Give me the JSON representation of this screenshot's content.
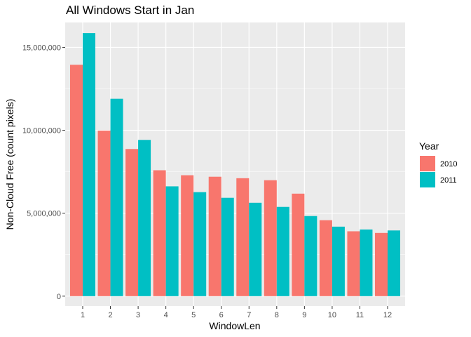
{
  "chart_data": {
    "type": "bar",
    "title": "All Windows Start in Jan",
    "xlabel": "WindowLen",
    "ylabel": "Non-Cloud Free (count pixels)",
    "categories": [
      "1",
      "2",
      "3",
      "4",
      "5",
      "6",
      "7",
      "8",
      "9",
      "10",
      "11",
      "12"
    ],
    "series": [
      {
        "name": "2010",
        "color": "#F8766D",
        "values": [
          13950000,
          9980000,
          8870000,
          7590000,
          7290000,
          7200000,
          7110000,
          6990000,
          6180000,
          4580000,
          3910000,
          3810000
        ]
      },
      {
        "name": "2011",
        "color": "#00BFC4",
        "values": [
          15860000,
          11900000,
          9420000,
          6620000,
          6270000,
          5930000,
          5630000,
          5380000,
          4830000,
          4190000,
          4020000,
          3960000
        ]
      }
    ],
    "ylim": [
      -600000,
      16500000
    ],
    "yticks": [
      0,
      5000000,
      10000000,
      15000000
    ],
    "ytick_labels": [
      "0",
      "5,000,000",
      "10,000,000",
      "15,000,000"
    ],
    "grid": true,
    "legend": {
      "title": "Year",
      "position": "right"
    }
  }
}
